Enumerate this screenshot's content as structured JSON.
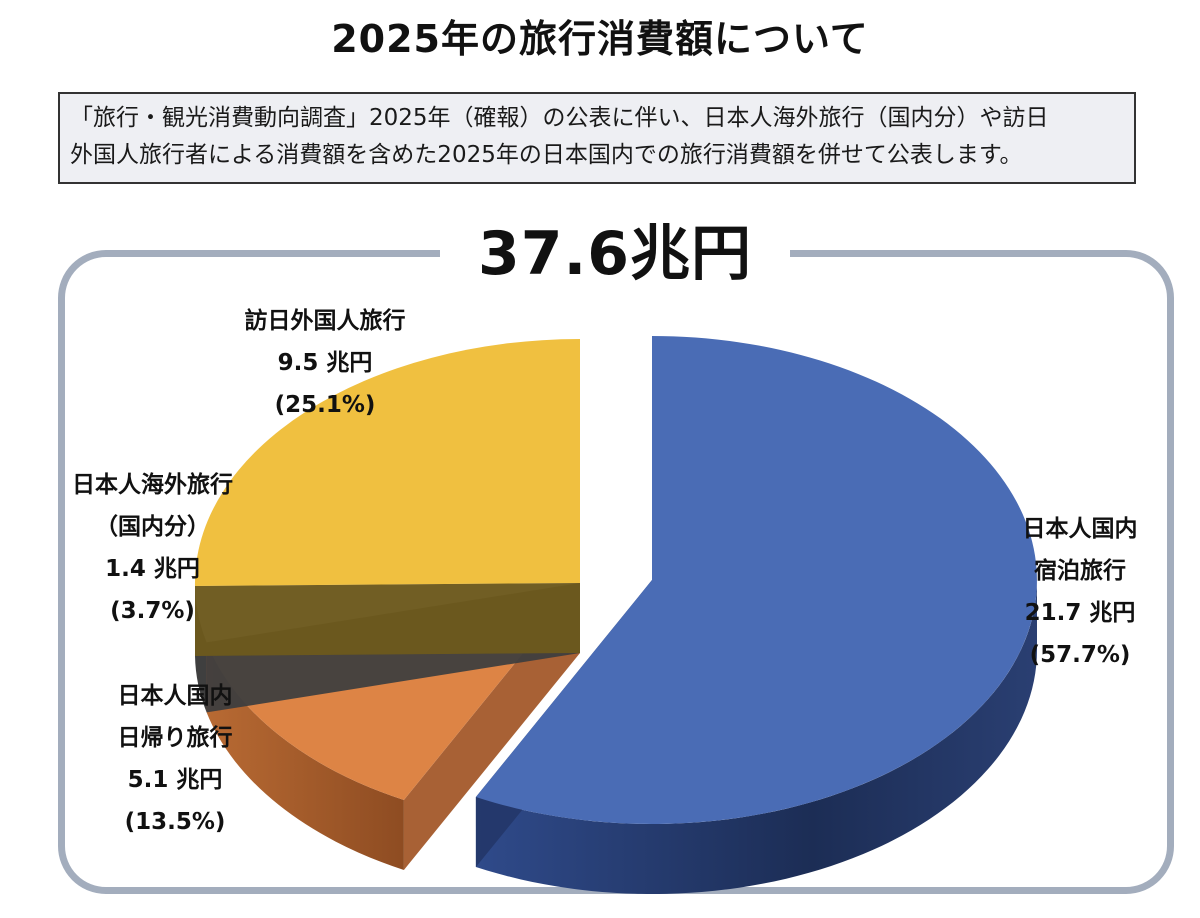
{
  "page": {
    "title": "2025年の旅行消費額について",
    "notice_line1": "「旅行・観光消費動向調査」2025年（確報）の公表に伴い、日本人海外旅行（国内分）や訪日",
    "notice_line2": "外国人旅行者による消費額を含めた2025年の日本国内での旅行消費額を併せて公表します。"
  },
  "chart_data": {
    "type": "pie",
    "title": "37.6兆円",
    "total": 37.6,
    "unit": "兆円",
    "slices": [
      {
        "key": "domestic_overnight",
        "line1": "日本人国内",
        "line2": "宿泊旅行",
        "value": 21.7,
        "value_text": "21.7 兆円",
        "percent": 57.7,
        "percent_text": "(57.7%)",
        "color": "#4a6cb5",
        "side_color": "#24386a",
        "exploded": true
      },
      {
        "key": "domestic_daytrip",
        "line1": "日本人国内",
        "line2": "日帰り旅行",
        "value": 5.1,
        "value_text": "5.1 兆円",
        "percent": 13.5,
        "percent_text": "(13.5%)",
        "color": "#dd8445",
        "side_color": "#a3582a",
        "exploded": false
      },
      {
        "key": "outbound_domestic_part",
        "line1": "日本人海外旅行",
        "line2": "（国内分）",
        "value": 1.4,
        "value_text": "1.4 兆円",
        "percent": 3.7,
        "percent_text": "(3.7%)",
        "color": "#a6a6a6",
        "side_color": "#3f3f3f",
        "exploded": false
      },
      {
        "key": "inbound",
        "line1": "訪日外国人旅行",
        "line2": "",
        "value": 9.5,
        "value_text": "9.5 兆円",
        "percent": 25.1,
        "percent_text": "(25.1%)",
        "color": "#f0c040",
        "side_color": "#6e5a1c",
        "exploded": false
      }
    ]
  }
}
